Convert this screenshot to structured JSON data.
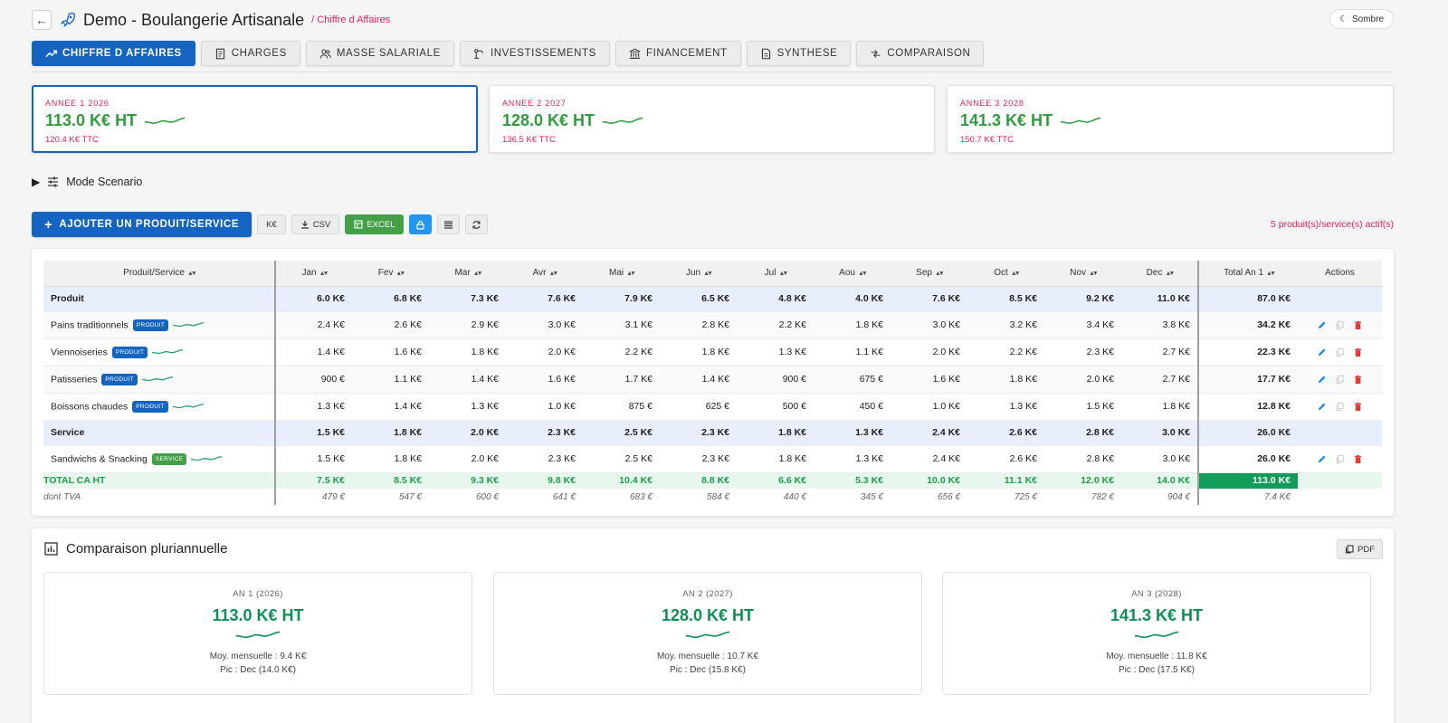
{
  "header": {
    "back_icon": "arrow-left-icon",
    "title": "Demo - Boulangerie Artisanale",
    "breadcrumb": "/ Chiffre d Affaires",
    "theme_label": "Sombre"
  },
  "tabs": [
    {
      "label": "CHIFFRE D AFFAIRES",
      "icon": "trending-up-icon",
      "active": true
    },
    {
      "label": "CHARGES",
      "icon": "receipt-icon"
    },
    {
      "label": "MASSE SALARIALE",
      "icon": "people-icon"
    },
    {
      "label": "INVESTISSEMENTS",
      "icon": "machine-icon"
    },
    {
      "label": "FINANCEMENT",
      "icon": "bank-icon"
    },
    {
      "label": "SYNTHESE",
      "icon": "document-icon"
    },
    {
      "label": "COMPARAISON",
      "icon": "compare-icon"
    }
  ],
  "year_cards": [
    {
      "label": "ANNEE 1 2026",
      "ht": "113.0 K€ HT",
      "ttc": "120.4 K€ TTC"
    },
    {
      "label": "ANNEE 2 2027",
      "ht": "128.0 K€ HT",
      "ttc": "136.5 K€ TTC"
    },
    {
      "label": "ANNEE 3 2028",
      "ht": "141.3 K€ HT",
      "ttc": "150.7 K€ TTC"
    }
  ],
  "mode_scenario": "Mode Scenario",
  "toolbar": {
    "add_label": "AJOUTER UN PRODUIT/SERVICE",
    "unit_label": "K€",
    "csv_label": "CSV",
    "excel_label": "EXCEL",
    "active_count": "5 produit(s)/service(s) actif(s)"
  },
  "table": {
    "headers": {
      "name": "Produit/Service",
      "months": [
        "Jan",
        "Fev",
        "Mar",
        "Avr",
        "Mai",
        "Jun",
        "Jul",
        "Aou",
        "Sep",
        "Oct",
        "Nov",
        "Dec"
      ],
      "total": "Total An 1",
      "actions": "Actions"
    },
    "groups": [
      {
        "name": "Produit",
        "months": [
          "6.0 K€",
          "6.8 K€",
          "7.3 K€",
          "7.6 K€",
          "7.9 K€",
          "6.5 K€",
          "4.8 K€",
          "4.0 K€",
          "7.6 K€",
          "8.5 K€",
          "9.2 K€",
          "11.0 K€"
        ],
        "total": "87.0 K€",
        "items": [
          {
            "name": "Pains traditionnels",
            "badge": "PRODUIT",
            "months": [
              "2.4 K€",
              "2.6 K€",
              "2.9 K€",
              "3.0 K€",
              "3.1 K€",
              "2.8 K€",
              "2.2 K€",
              "1.8 K€",
              "3.0 K€",
              "3.2 K€",
              "3.4 K€",
              "3.8 K€"
            ],
            "total": "34.2 K€"
          },
          {
            "name": "Viennoiseries",
            "badge": "PRODUIT",
            "months": [
              "1.4 K€",
              "1.6 K€",
              "1.8 K€",
              "2.0 K€",
              "2.2 K€",
              "1.8 K€",
              "1.3 K€",
              "1.1 K€",
              "2.0 K€",
              "2.2 K€",
              "2.3 K€",
              "2.7 K€"
            ],
            "total": "22.3 K€"
          },
          {
            "name": "Patisseries",
            "badge": "PRODUIT",
            "months": [
              "900 €",
              "1.1 K€",
              "1.4 K€",
              "1.6 K€",
              "1.7 K€",
              "1.4 K€",
              "900 €",
              "675 €",
              "1.6 K€",
              "1.8 K€",
              "2.0 K€",
              "2.7 K€"
            ],
            "total": "17.7 K€"
          },
          {
            "name": "Boissons chaudes",
            "badge": "PRODUIT",
            "months": [
              "1.3 K€",
              "1.4 K€",
              "1.3 K€",
              "1.0 K€",
              "875 €",
              "625 €",
              "500 €",
              "450 €",
              "1.0 K€",
              "1.3 K€",
              "1.5 K€",
              "1.8 K€"
            ],
            "total": "12.8 K€"
          }
        ]
      },
      {
        "name": "Service",
        "months": [
          "1.5 K€",
          "1.8 K€",
          "2.0 K€",
          "2.3 K€",
          "2.5 K€",
          "2.3 K€",
          "1.8 K€",
          "1.3 K€",
          "2.4 K€",
          "2.6 K€",
          "2.8 K€",
          "3.0 K€"
        ],
        "total": "26.0 K€",
        "items": [
          {
            "name": "Sandwichs & Snacking",
            "badge": "SERVICE",
            "months": [
              "1.5 K€",
              "1.8 K€",
              "2.0 K€",
              "2.3 K€",
              "2.5 K€",
              "2.3 K€",
              "1.8 K€",
              "1.3 K€",
              "2.4 K€",
              "2.6 K€",
              "2.8 K€",
              "3.0 K€"
            ],
            "total": "26.0 K€"
          }
        ]
      }
    ],
    "total_row": {
      "label": "TOTAL CA HT",
      "months": [
        "7.5 K€",
        "8.5 K€",
        "9.3 K€",
        "9.8 K€",
        "10.4 K€",
        "8.8 K€",
        "6.6 K€",
        "5.3 K€",
        "10.0 K€",
        "11.1 K€",
        "12.0 K€",
        "14.0 K€"
      ],
      "total": "113.0 K€"
    },
    "tva_row": {
      "label": "dont TVA",
      "months": [
        "479 €",
        "547 €",
        "600 €",
        "641 €",
        "683 €",
        "584 €",
        "440 €",
        "345 €",
        "656 €",
        "725 €",
        "782 €",
        "904 €"
      ],
      "total": "7.4 K€"
    }
  },
  "comparison": {
    "title": "Comparaison pluriannuelle",
    "pdf_label": "PDF",
    "cards": [
      {
        "label": "AN 1 (2026)",
        "ht": "113.0 K€ HT",
        "avg": "Moy. mensuelle : 9.4 K€",
        "peak": "Pic : Dec (14.0 K€)"
      },
      {
        "label": "AN 2 (2027)",
        "ht": "128.0 K€ HT",
        "avg": "Moy. mensuelle : 10.7 K€",
        "peak": "Pic : Dec (15.8 K€)"
      },
      {
        "label": "AN 3 (2028)",
        "ht": "141.3 K€ HT",
        "avg": "Moy. mensuelle : 11.8 K€",
        "peak": "Pic : Dec (17.5 K€)"
      }
    ]
  },
  "colors": {
    "primary": "#1565c0",
    "accent_pink": "#e91e63",
    "success_green": "#2e9d3e",
    "total_green": "#0f9d58"
  }
}
